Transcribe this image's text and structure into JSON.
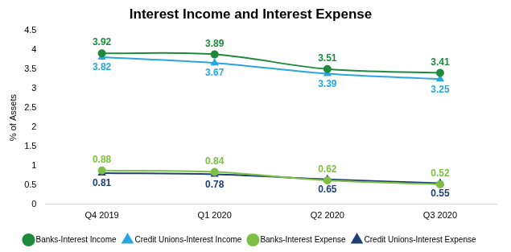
{
  "chart_data": {
    "type": "line",
    "title": "Interest Income and Interest Expense",
    "y_label": "% of Assets",
    "categories": [
      "Q4 2019",
      "Q1 2020",
      "Q2 2020",
      "Q3 2020"
    ],
    "series": [
      {
        "name": "Banks-Interest Income",
        "color": "#1e8a3e",
        "marker": "circle",
        "line_style": "solid",
        "values": [
          3.92,
          3.89,
          3.51,
          3.41
        ]
      },
      {
        "name": "Credit Unions-Interest Income",
        "color": "#2aa6df",
        "marker": "triangle",
        "line_style": "solid",
        "values": [
          3.82,
          3.67,
          3.39,
          3.25
        ]
      },
      {
        "name": "Banks-Interest Expense",
        "color": "#7dbf44",
        "marker": "circle",
        "line_style": "solid",
        "values": [
          0.88,
          0.84,
          0.62,
          0.52
        ]
      },
      {
        "name": "Credit Unions-Interest Expense",
        "color": "#1f3f78",
        "marker": "triangle",
        "line_style": "solid",
        "values": [
          0.81,
          0.78,
          0.65,
          0.55
        ]
      }
    ],
    "ylim": [
      0,
      4.5
    ],
    "yticks": [
      0,
      0.5,
      1,
      1.5,
      2,
      2.5,
      3,
      3.5,
      4,
      4.5
    ],
    "grid": false,
    "legend": "bottom",
    "data_labels": true
  }
}
